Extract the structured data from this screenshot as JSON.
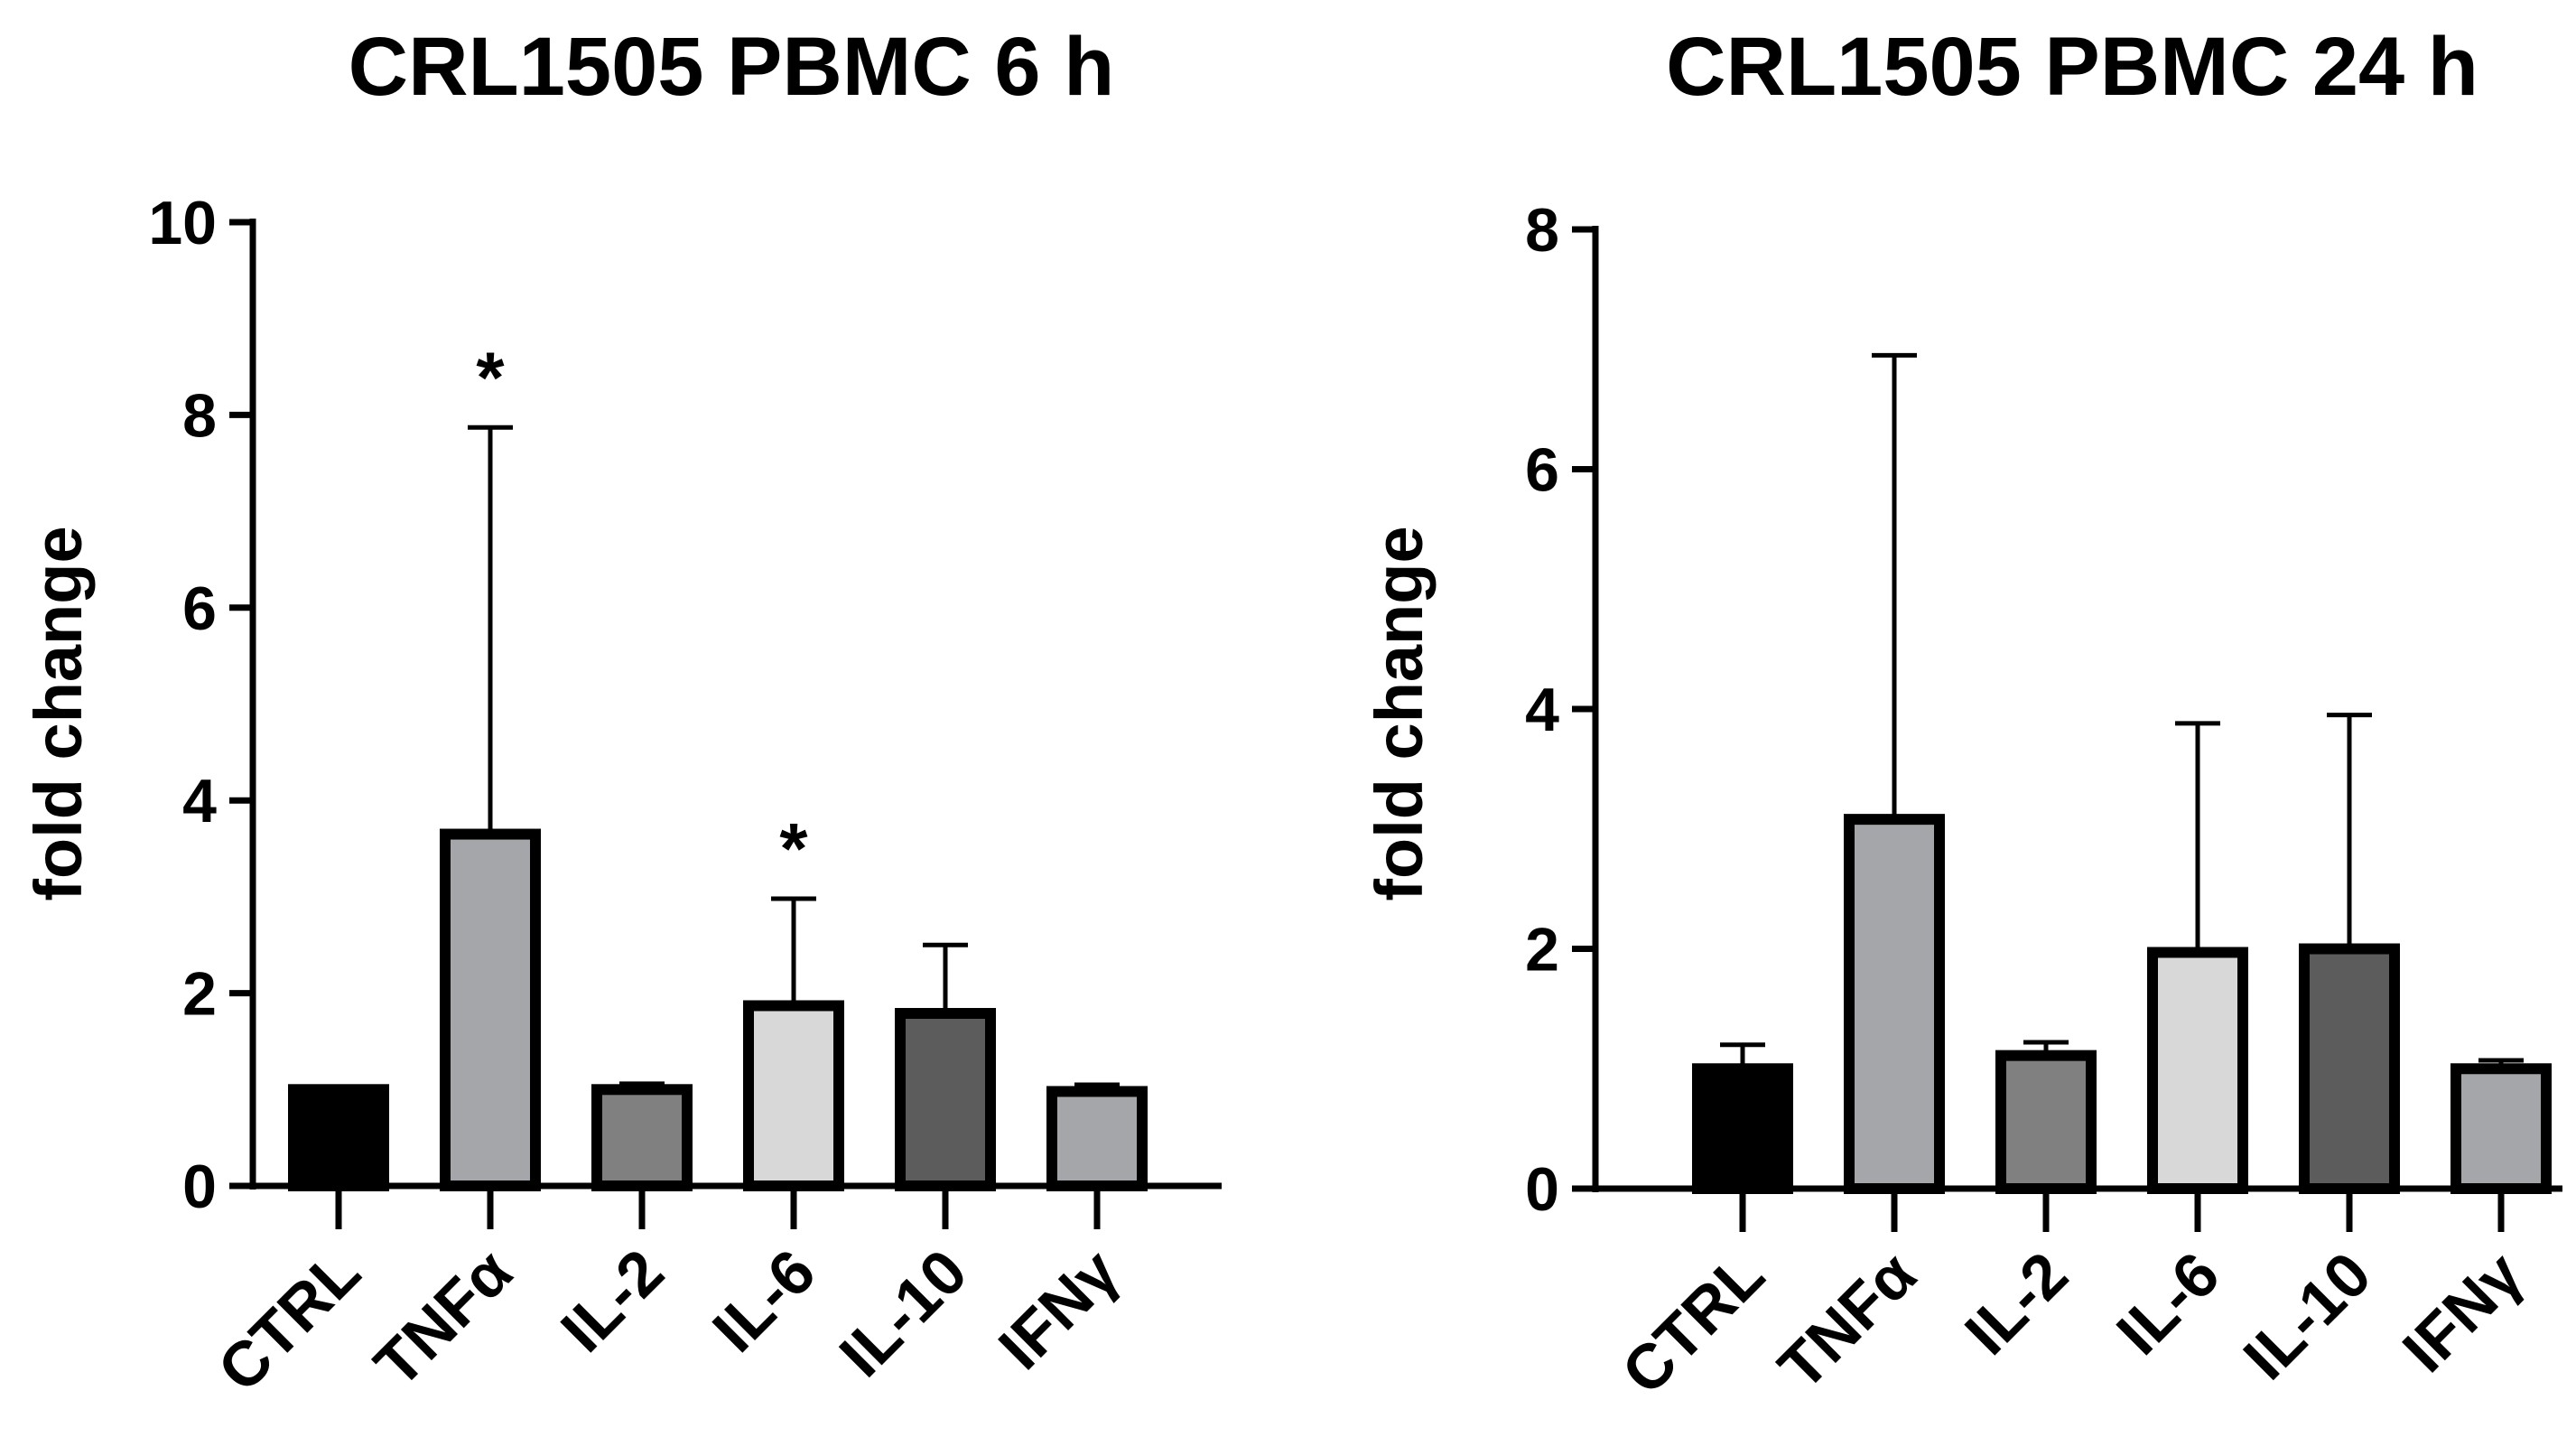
{
  "chart_data": [
    {
      "type": "bar",
      "title": "CRL1505 PBMC 6 h",
      "xlabel": "",
      "ylabel": "fold change",
      "ylim": [
        0,
        10
      ],
      "yticks": [
        "0",
        "2",
        "4",
        "6",
        "8",
        "10"
      ],
      "grid": false,
      "legend": "none",
      "categories": [
        "CTRL",
        "TNFα",
        "IL-2",
        "IL-6",
        "IL-10",
        "IFNγ"
      ],
      "values": [
        1.0,
        3.65,
        1.0,
        1.87,
        1.79,
        0.98
      ],
      "error_upper": [
        1.03,
        7.87,
        1.06,
        2.98,
        2.5,
        1.05
      ],
      "colors": [
        "#000000",
        "#a4a6aa",
        "#808080",
        "#d8d8d8",
        "#5c5c5c",
        "#a4a6aa"
      ],
      "significance": [
        "",
        "*",
        "",
        "*",
        "",
        ""
      ]
    },
    {
      "type": "bar",
      "title": "CRL1505 PBMC 24 h",
      "xlabel": "",
      "ylabel": "fold change",
      "ylim": [
        0,
        8
      ],
      "yticks": [
        "0",
        "2",
        "4",
        "6",
        "8"
      ],
      "grid": false,
      "legend": "none",
      "categories": [
        "CTRL",
        "TNFα",
        "IL-2",
        "IL-6",
        "IL-10",
        "IFNγ"
      ],
      "values": [
        1.0,
        3.08,
        1.11,
        1.97,
        2.0,
        1.0
      ],
      "error_upper": [
        1.2,
        6.95,
        1.22,
        3.88,
        3.95,
        1.07
      ],
      "colors": [
        "#000000",
        "#a4a6aa",
        "#808080",
        "#d8d8d8",
        "#5c5c5c",
        "#a4a6aa"
      ],
      "significance": [
        "",
        "",
        "",
        "",
        "",
        ""
      ]
    }
  ]
}
